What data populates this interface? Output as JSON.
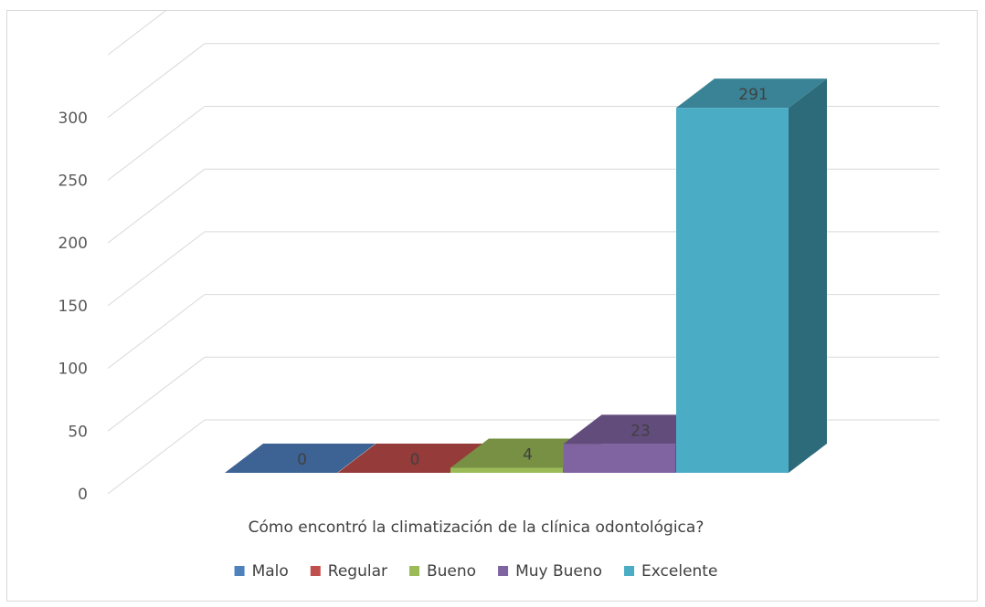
{
  "chart_data": {
    "type": "bar",
    "categories": [
      "Malo",
      "Regular",
      "Bueno",
      "Muy Bueno",
      "Excelente"
    ],
    "values": [
      0,
      0,
      4,
      23,
      291
    ],
    "title": "",
    "xlabel": "Cómo encontró la climatización  de la clínica odontológica?",
    "ylabel": "",
    "ylim": [
      0,
      300
    ],
    "yticks": [
      0,
      50,
      100,
      150,
      200,
      250,
      300
    ],
    "grid": true,
    "legend_position": "bottom",
    "colors": {
      "front": [
        "#4f81bd",
        "#c0504d",
        "#9bbb59",
        "#8064a2",
        "#4bacc6"
      ],
      "top": [
        "#3c6394",
        "#953b39",
        "#779043",
        "#624c7c",
        "#3a8396"
      ],
      "side": [
        "#2e4c72",
        "#73302e",
        "#5c6f34",
        "#4b3b60",
        "#2e6b7a"
      ]
    },
    "legend": [
      {
        "label": "Malo",
        "color": "#4f81bd"
      },
      {
        "label": "Regular",
        "color": "#c0504d"
      },
      {
        "label": "Bueno",
        "color": "#9bbb59"
      },
      {
        "label": "Muy Bueno",
        "color": "#8064a2"
      },
      {
        "label": "Excelente",
        "color": "#4bacc6"
      }
    ]
  }
}
